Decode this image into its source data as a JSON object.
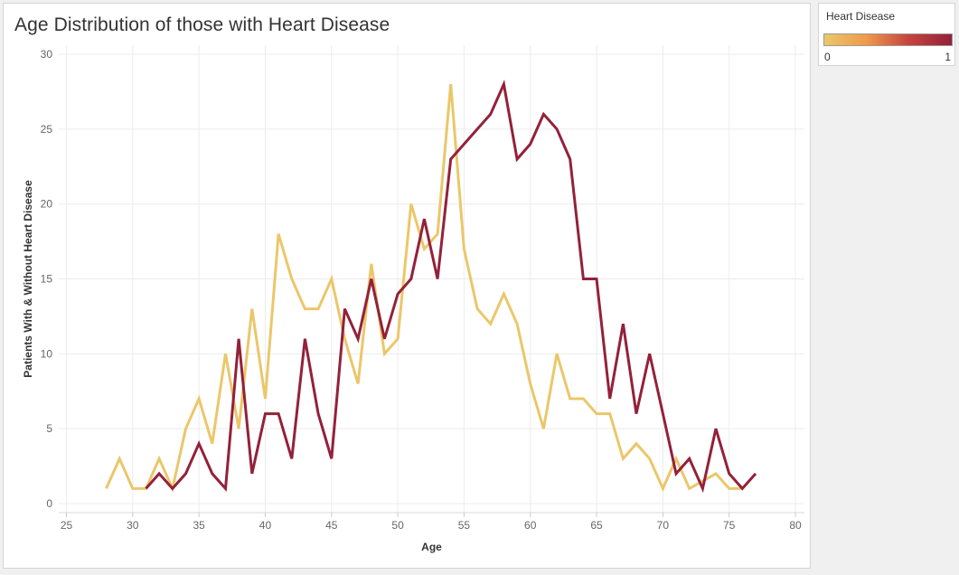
{
  "chart_data": {
    "type": "line",
    "title": "Age Distribution of those with Heart Disease",
    "xlabel": "Age",
    "ylabel": "Patients With & Without Heart Disease",
    "xlim": [
      25,
      80
    ],
    "ylim": [
      0,
      30
    ],
    "xticks": [
      25,
      30,
      35,
      40,
      45,
      50,
      55,
      60,
      65,
      70,
      75,
      80
    ],
    "yticks": [
      0,
      5,
      10,
      15,
      20,
      25,
      30
    ],
    "grid": true,
    "legend": {
      "title": "Heart Disease",
      "type": "color-gradient",
      "min_label": "0",
      "max_label": "1",
      "min_color": "#ebc76a",
      "max_color": "#93213a"
    },
    "series": [
      {
        "color": "#ebc76a",
        "points": [
          [
            28,
            1
          ],
          [
            29,
            3
          ],
          [
            30,
            1
          ],
          [
            31,
            1
          ],
          [
            32,
            3
          ],
          [
            33,
            1
          ],
          [
            34,
            5
          ],
          [
            35,
            7
          ],
          [
            36,
            4
          ],
          [
            37,
            10
          ],
          [
            38,
            5
          ],
          [
            39,
            13
          ],
          [
            40,
            7
          ],
          [
            41,
            18
          ],
          [
            42,
            15
          ],
          [
            43,
            13
          ],
          [
            44,
            13
          ],
          [
            45,
            15
          ],
          [
            46,
            11
          ],
          [
            47,
            8
          ],
          [
            48,
            16
          ],
          [
            49,
            10
          ],
          [
            50,
            11
          ],
          [
            51,
            20
          ],
          [
            52,
            17
          ],
          [
            53,
            18
          ],
          [
            54,
            28
          ],
          [
            55,
            17
          ],
          [
            56,
            13
          ],
          [
            57,
            12
          ],
          [
            58,
            14
          ],
          [
            59,
            12
          ],
          [
            60,
            8
          ],
          [
            61,
            5
          ],
          [
            62,
            10
          ],
          [
            63,
            7
          ],
          [
            64,
            7
          ],
          [
            65,
            6
          ],
          [
            66,
            6
          ],
          [
            67,
            3
          ],
          [
            68,
            4
          ],
          [
            69,
            3
          ],
          [
            70,
            1
          ],
          [
            71,
            3
          ],
          [
            72,
            1
          ],
          [
            73,
            1.5
          ],
          [
            74,
            2
          ],
          [
            75,
            1
          ],
          [
            76,
            1
          ]
        ]
      },
      {
        "color": "#93213a",
        "points": [
          [
            31,
            1
          ],
          [
            32,
            2
          ],
          [
            33,
            1
          ],
          [
            34,
            2
          ],
          [
            35,
            4
          ],
          [
            36,
            2
          ],
          [
            37,
            1
          ],
          [
            38,
            11
          ],
          [
            39,
            2
          ],
          [
            40,
            6
          ],
          [
            41,
            6
          ],
          [
            42,
            3
          ],
          [
            43,
            11
          ],
          [
            44,
            6
          ],
          [
            45,
            3
          ],
          [
            46,
            13
          ],
          [
            47,
            11
          ],
          [
            48,
            15
          ],
          [
            49,
            11
          ],
          [
            50,
            14
          ],
          [
            51,
            15
          ],
          [
            52,
            19
          ],
          [
            53,
            15
          ],
          [
            54,
            23
          ],
          [
            55,
            24
          ],
          [
            56,
            25
          ],
          [
            57,
            26
          ],
          [
            58,
            28
          ],
          [
            59,
            23
          ],
          [
            60,
            24
          ],
          [
            61,
            26
          ],
          [
            62,
            25
          ],
          [
            63,
            23
          ],
          [
            64,
            15
          ],
          [
            65,
            15
          ],
          [
            66,
            7
          ],
          [
            67,
            12
          ],
          [
            68,
            6
          ],
          [
            69,
            10
          ],
          [
            70,
            6
          ],
          [
            71,
            2
          ],
          [
            72,
            3
          ],
          [
            73,
            1
          ],
          [
            74,
            5
          ],
          [
            75,
            2
          ],
          [
            76,
            1
          ],
          [
            77,
            2
          ]
        ]
      }
    ]
  }
}
